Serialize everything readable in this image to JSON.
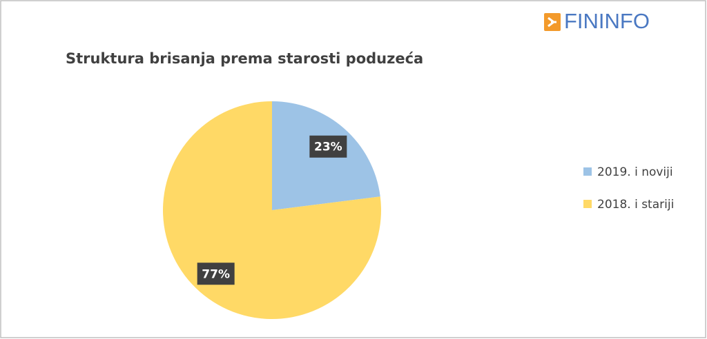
{
  "brand": "FININFO",
  "chart_data": {
    "type": "pie",
    "title": "Struktura brisanja prema starosti poduzeća",
    "categories": [
      "2019. i noviji",
      "2018. i stariji"
    ],
    "values": [
      23,
      77
    ],
    "value_labels": [
      "23%",
      "77%"
    ],
    "colors": [
      "#9dc3e6",
      "#ffd966"
    ],
    "legend": "right"
  }
}
